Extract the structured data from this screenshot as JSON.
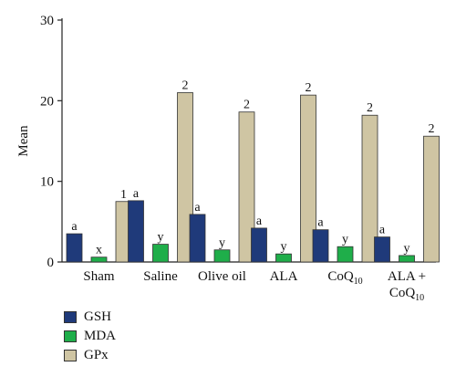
{
  "chart_data": {
    "type": "bar",
    "categories": [
      {
        "label": "Sham",
        "sub": "",
        "line2": "",
        "line2sub": ""
      },
      {
        "label": "Saline",
        "sub": "",
        "line2": "",
        "line2sub": ""
      },
      {
        "label": "Olive oil",
        "sub": "",
        "line2": "",
        "line2sub": ""
      },
      {
        "label": "ALA",
        "sub": "",
        "line2": "",
        "line2sub": ""
      },
      {
        "label": "CoQ",
        "sub": "10",
        "line2": "",
        "line2sub": ""
      },
      {
        "label": "ALA +",
        "sub": "",
        "line2": "CoQ",
        "line2sub": "10"
      }
    ],
    "series": [
      {
        "name": "GSH",
        "color": "#1f3a7a",
        "values": [
          3.5,
          7.6,
          5.9,
          4.2,
          4.0,
          3.1
        ],
        "annotations": [
          "a",
          "a",
          "a",
          "a",
          "a",
          "a"
        ]
      },
      {
        "name": "MDA",
        "color": "#1fae4a",
        "values": [
          0.6,
          2.2,
          1.5,
          1.0,
          1.9,
          0.8
        ],
        "annotations": [
          "x",
          "y",
          "y",
          "y",
          "y",
          "y"
        ]
      },
      {
        "name": "GPx",
        "color": "#cfc5a3",
        "values": [
          7.5,
          21.0,
          18.6,
          20.7,
          18.2,
          15.6
        ],
        "annotations": [
          "1",
          "2",
          "2",
          "2",
          "2",
          "2"
        ]
      }
    ],
    "ylabel": "Mean",
    "xlabel": "",
    "ylim": [
      0,
      30
    ],
    "yticks": [
      0,
      10,
      20,
      30
    ],
    "legend_position": "bottom-left",
    "grid": false
  }
}
